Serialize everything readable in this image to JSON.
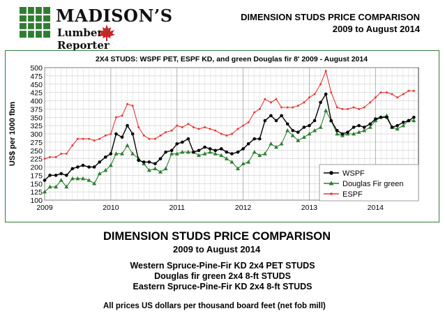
{
  "header": {
    "title_line1": "DIMENSION STUDS PRICE COMPARISON",
    "title_line2": "2009 to August 2014"
  },
  "logo": {
    "brand_line1": "MADISON’S",
    "brand_line2a": "Lumber",
    "brand_line2b": "Reporter",
    "leaf_color": "#c62828"
  },
  "chart_data": {
    "type": "line",
    "title": "2X4 STUDS: WSPF PET, ESPF KD, and green Douglas fir 8'  2009 - August 2014",
    "ylabel": "US$ per 1000 fbm",
    "xlabel": "",
    "xlim": [
      2009,
      2014.65
    ],
    "ylim": [
      100,
      500
    ],
    "yticks": [
      100,
      125,
      150,
      175,
      200,
      225,
      250,
      275,
      300,
      325,
      350,
      375,
      400,
      425,
      450,
      475,
      500
    ],
    "xticks": [
      "2009",
      "2010",
      "2011",
      "2012",
      "2013",
      "2014"
    ],
    "grid": true,
    "legend_position": "bottom-right",
    "series": [
      {
        "name": "WSPF",
        "color": "#000000",
        "marker": "circle",
        "x": [
          2009.0,
          2009.08,
          2009.17,
          2009.25,
          2009.33,
          2009.42,
          2009.5,
          2009.58,
          2009.67,
          2009.75,
          2009.83,
          2009.92,
          2010.0,
          2010.08,
          2010.17,
          2010.25,
          2010.33,
          2010.42,
          2010.5,
          2010.58,
          2010.67,
          2010.75,
          2010.83,
          2010.92,
          2011.0,
          2011.08,
          2011.17,
          2011.25,
          2011.33,
          2011.42,
          2011.5,
          2011.58,
          2011.67,
          2011.75,
          2011.83,
          2011.92,
          2012.0,
          2012.08,
          2012.17,
          2012.25,
          2012.33,
          2012.42,
          2012.5,
          2012.58,
          2012.67,
          2012.75,
          2012.83,
          2012.92,
          2013.0,
          2013.08,
          2013.17,
          2013.25,
          2013.33,
          2013.42,
          2013.5,
          2013.58,
          2013.67,
          2013.75,
          2013.83,
          2013.92,
          2014.0,
          2014.08,
          2014.17,
          2014.25,
          2014.33,
          2014.42,
          2014.5,
          2014.58
        ],
        "values": [
          160,
          175,
          175,
          180,
          175,
          195,
          200,
          205,
          200,
          200,
          215,
          230,
          240,
          300,
          290,
          325,
          300,
          220,
          215,
          215,
          210,
          225,
          245,
          250,
          270,
          275,
          285,
          245,
          250,
          260,
          255,
          250,
          255,
          245,
          240,
          245,
          255,
          270,
          285,
          285,
          340,
          355,
          340,
          355,
          330,
          310,
          305,
          320,
          325,
          340,
          395,
          420,
          340,
          310,
          300,
          305,
          320,
          325,
          320,
          330,
          345,
          350,
          350,
          320,
          325,
          335,
          340,
          350
        ]
      },
      {
        "name": "Douglas Fir green",
        "color": "#2e7d32",
        "marker": "triangle",
        "x": [
          2009.0,
          2009.08,
          2009.17,
          2009.25,
          2009.33,
          2009.42,
          2009.5,
          2009.58,
          2009.67,
          2009.75,
          2009.83,
          2009.92,
          2010.0,
          2010.08,
          2010.17,
          2010.25,
          2010.33,
          2010.42,
          2010.5,
          2010.58,
          2010.67,
          2010.75,
          2010.83,
          2010.92,
          2011.0,
          2011.08,
          2011.17,
          2011.25,
          2011.33,
          2011.42,
          2011.5,
          2011.58,
          2011.67,
          2011.75,
          2011.83,
          2011.92,
          2012.0,
          2012.08,
          2012.17,
          2012.25,
          2012.33,
          2012.42,
          2012.5,
          2012.58,
          2012.67,
          2012.75,
          2012.83,
          2012.92,
          2013.0,
          2013.08,
          2013.17,
          2013.25,
          2013.33,
          2013.42,
          2013.5,
          2013.58,
          2013.67,
          2013.75,
          2013.83,
          2013.92,
          2014.0,
          2014.08,
          2014.17,
          2014.25,
          2014.33,
          2014.42,
          2014.5,
          2014.58
        ],
        "values": [
          125,
          140,
          140,
          160,
          140,
          165,
          165,
          165,
          160,
          150,
          180,
          190,
          205,
          240,
          240,
          265,
          240,
          225,
          210,
          190,
          195,
          185,
          195,
          240,
          240,
          245,
          245,
          245,
          235,
          240,
          245,
          240,
          235,
          225,
          215,
          195,
          210,
          215,
          245,
          235,
          240,
          270,
          260,
          270,
          310,
          295,
          280,
          290,
          300,
          310,
          320,
          370,
          340,
          300,
          295,
          300,
          300,
          305,
          310,
          320,
          340,
          350,
          355,
          320,
          315,
          325,
          340,
          340
        ]
      },
      {
        "name": "ESPF",
        "color": "#e53935",
        "marker": "dot",
        "x": [
          2009.0,
          2009.08,
          2009.17,
          2009.25,
          2009.33,
          2009.42,
          2009.5,
          2009.58,
          2009.67,
          2009.75,
          2009.83,
          2009.92,
          2010.0,
          2010.08,
          2010.17,
          2010.25,
          2010.33,
          2010.42,
          2010.5,
          2010.58,
          2010.67,
          2010.75,
          2010.83,
          2010.92,
          2011.0,
          2011.08,
          2011.17,
          2011.25,
          2011.33,
          2011.42,
          2011.5,
          2011.58,
          2011.67,
          2011.75,
          2011.83,
          2011.92,
          2012.0,
          2012.08,
          2012.17,
          2012.25,
          2012.33,
          2012.42,
          2012.5,
          2012.58,
          2012.67,
          2012.75,
          2012.83,
          2012.92,
          2013.0,
          2013.08,
          2013.17,
          2013.25,
          2013.33,
          2013.42,
          2013.5,
          2013.58,
          2013.67,
          2013.75,
          2013.83,
          2013.92,
          2014.0,
          2014.08,
          2014.17,
          2014.25,
          2014.33,
          2014.42,
          2014.5,
          2014.58
        ],
        "values": [
          225,
          230,
          230,
          240,
          240,
          265,
          285,
          285,
          285,
          280,
          285,
          295,
          300,
          350,
          355,
          390,
          385,
          320,
          295,
          285,
          285,
          295,
          305,
          310,
          325,
          320,
          330,
          320,
          315,
          320,
          315,
          310,
          300,
          295,
          300,
          315,
          325,
          335,
          365,
          375,
          405,
          395,
          405,
          380,
          380,
          380,
          385,
          395,
          410,
          420,
          450,
          490,
          425,
          380,
          375,
          375,
          380,
          375,
          380,
          395,
          410,
          425,
          425,
          420,
          410,
          420,
          430,
          430
        ]
      }
    ]
  },
  "info": {
    "title": "DIMENSION STUDS PRICE COMPARISON",
    "subtitle": "2009 to August 2014",
    "line1": "Western Spruce-Pine-Fir KD 2x4 PET STUDS",
    "line2": "Douglas fir green 2x4 8-ft STUDS",
    "line3": "Eastern Spruce-Pine-Fir KD 2x4 8-ft STUDS",
    "note": "All prices US dollars per thousand board feet (net fob mill)"
  }
}
